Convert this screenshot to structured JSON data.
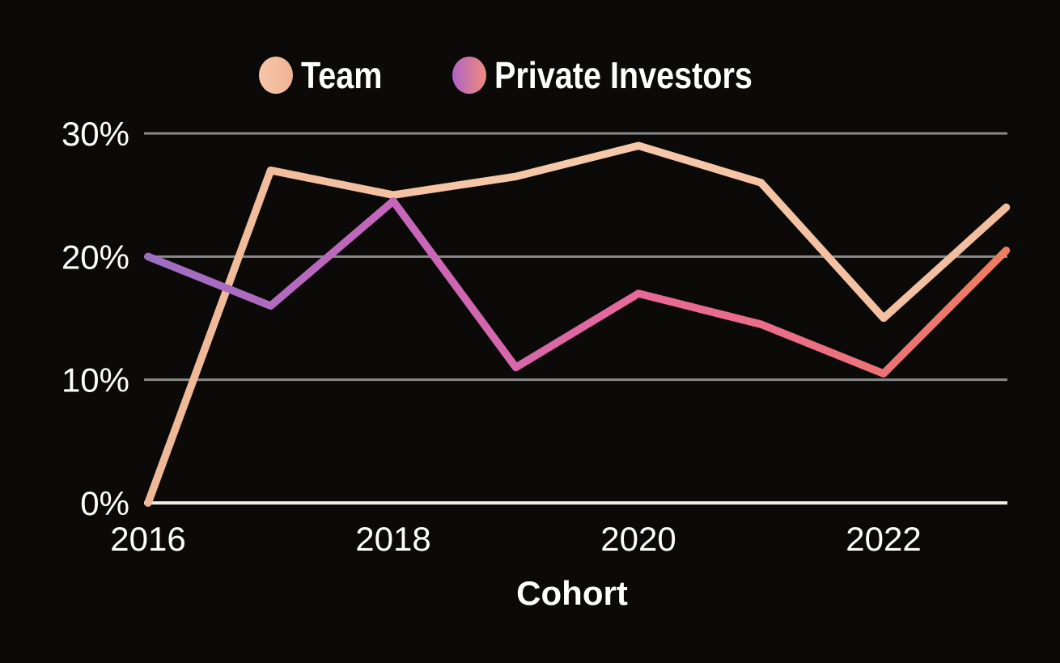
{
  "colors": {
    "background": "#0b0a08",
    "text": "#ffffff",
    "gridline": "#8b8b8b",
    "zero_axis": "#f2efe9"
  },
  "legend": {
    "items": [
      {
        "label": "Team",
        "swatch_start": "#f6c7a9",
        "swatch_end": "#f1b394"
      },
      {
        "label": "Private Investors",
        "swatch_start": "#b163c6",
        "swatch_end": "#ef8b7e"
      }
    ]
  },
  "chart_data": {
    "type": "line",
    "title": "",
    "xlabel": "Cohort",
    "ylabel": "",
    "x": [
      2016,
      2017,
      2018,
      2019,
      2020,
      2021,
      2022,
      2023
    ],
    "x_ticks": [
      {
        "label": "2016",
        "value": 2016
      },
      {
        "label": "2018",
        "value": 2018
      },
      {
        "label": "2020",
        "value": 2020
      },
      {
        "label": "2022",
        "value": 2022
      }
    ],
    "y_ticks": [
      {
        "label": "0%",
        "value": 0
      },
      {
        "label": "10%",
        "value": 10
      },
      {
        "label": "20%",
        "value": 20
      },
      {
        "label": "30%",
        "value": 30
      }
    ],
    "ylim": [
      0,
      30
    ],
    "grid": "horizontal-only",
    "legend_position": "top",
    "series": [
      {
        "name": "Team",
        "values": [
          0,
          27,
          25,
          26.5,
          29,
          26,
          15,
          24
        ],
        "gradient": [
          {
            "o": 0,
            "c": "#efb897"
          },
          {
            "o": 0.5,
            "c": "#f6c9ab"
          },
          {
            "o": 1,
            "c": "#f3bd9c"
          }
        ]
      },
      {
        "name": "Private Investors",
        "values": [
          20,
          16,
          24.5,
          11,
          17,
          14.5,
          10.5,
          20.5
        ],
        "gradient": [
          {
            "o": 0,
            "c": "#9c6ec3"
          },
          {
            "o": 0.29,
            "c": "#c666bb"
          },
          {
            "o": 0.57,
            "c": "#e8689a"
          },
          {
            "o": 0.86,
            "c": "#ec7377"
          },
          {
            "o": 1,
            "c": "#ee7e5c"
          }
        ]
      }
    ]
  }
}
